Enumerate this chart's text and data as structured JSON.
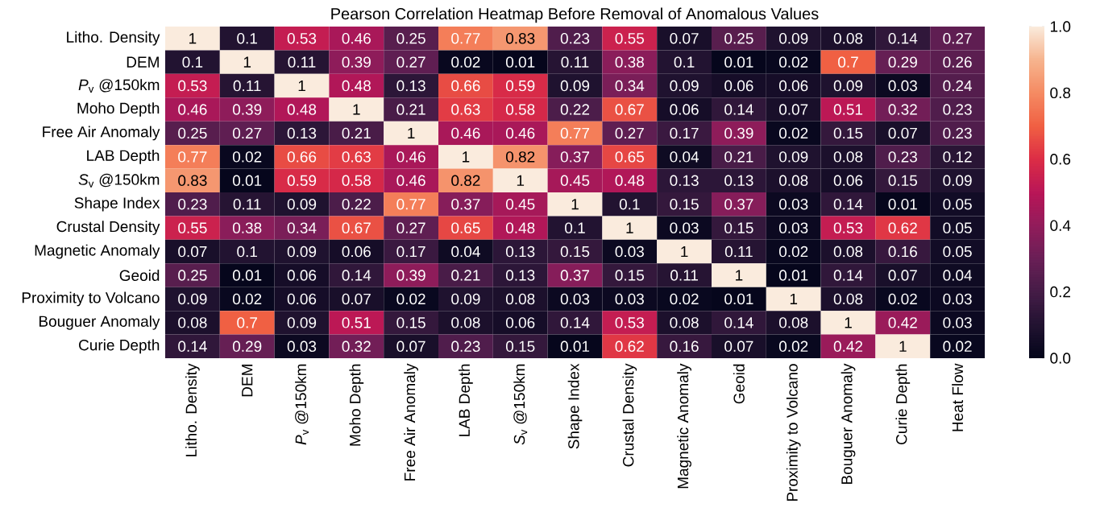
{
  "chart_data": {
    "type": "heatmap",
    "title": "Pearson Correlation Heatmap Before Removal of Anomalous Values",
    "categories": [
      "Litho. Density",
      "DEM",
      "*P*$_{v}$ @150km",
      "Moho Depth",
      "Free Air Anomaly",
      "LAB Depth",
      "*S*$_{v}$ @150km",
      "Shape Index",
      "Crustal Density",
      "Magnetic Anomaly",
      "Geoid",
      "Proximity to Volcano",
      "Bouguer Anomaly",
      "Curie Depth",
      "Heat Flow"
    ],
    "y_categories": [
      "Litho. Density",
      "DEM",
      "*P*$_{v}$ @150km",
      "Moho Depth",
      "Free Air Anomaly",
      "LAB Depth",
      "*S*$_{v}$ @150km",
      "Shape Index",
      "Crustal Density",
      "Magnetic Anomaly",
      "Geoid",
      "Proximity to Volcano",
      "Bouguer Anomaly",
      "Curie Depth"
    ],
    "cells": [
      [
        1,
        0.1,
        0.53,
        0.46,
        0.25,
        0.77,
        0.83,
        0.23,
        0.55,
        0.07,
        0.25,
        0.09,
        0.08,
        0.14,
        0.27
      ],
      [
        0.1,
        1,
        0.11,
        0.39,
        0.27,
        0.02,
        0.01,
        0.11,
        0.38,
        0.1,
        0.01,
        0.02,
        0.7,
        0.29,
        0.26
      ],
      [
        0.53,
        0.11,
        1,
        0.48,
        0.13,
        0.66,
        0.59,
        0.09,
        0.34,
        0.09,
        0.06,
        0.06,
        0.09,
        0.03,
        0.24
      ],
      [
        0.46,
        0.39,
        0.48,
        1,
        0.21,
        0.63,
        0.58,
        0.22,
        0.67,
        0.06,
        0.14,
        0.07,
        0.51,
        0.32,
        0.23
      ],
      [
        0.25,
        0.27,
        0.13,
        0.21,
        1,
        0.46,
        0.46,
        0.77,
        0.27,
        0.17,
        0.39,
        0.02,
        0.15,
        0.07,
        0.23
      ],
      [
        0.77,
        0.02,
        0.66,
        0.63,
        0.46,
        1,
        0.82,
        0.37,
        0.65,
        0.04,
        0.21,
        0.09,
        0.08,
        0.23,
        0.12
      ],
      [
        0.83,
        0.01,
        0.59,
        0.58,
        0.46,
        0.82,
        1,
        0.45,
        0.48,
        0.13,
        0.13,
        0.08,
        0.06,
        0.15,
        0.09
      ],
      [
        0.23,
        0.11,
        0.09,
        0.22,
        0.77,
        0.37,
        0.45,
        1,
        0.1,
        0.15,
        0.37,
        0.03,
        0.14,
        0.01,
        0.05
      ],
      [
        0.55,
        0.38,
        0.34,
        0.67,
        0.27,
        0.65,
        0.48,
        0.1,
        1,
        0.03,
        0.15,
        0.03,
        0.53,
        0.62,
        0.05
      ],
      [
        0.07,
        0.1,
        0.09,
        0.06,
        0.17,
        0.04,
        0.13,
        0.15,
        0.03,
        1,
        0.11,
        0.02,
        0.08,
        0.16,
        0.05
      ],
      [
        0.25,
        0.01,
        0.06,
        0.14,
        0.39,
        0.21,
        0.13,
        0.37,
        0.15,
        0.11,
        1,
        0.01,
        0.14,
        0.07,
        0.04
      ],
      [
        0.09,
        0.02,
        0.06,
        0.07,
        0.02,
        0.09,
        0.08,
        0.03,
        0.03,
        0.02,
        0.01,
        1,
        0.08,
        0.02,
        0.03
      ],
      [
        0.08,
        0.7,
        0.09,
        0.51,
        0.15,
        0.08,
        0.06,
        0.14,
        0.53,
        0.08,
        0.14,
        0.08,
        1,
        0.42,
        0.03
      ],
      [
        0.14,
        0.29,
        0.03,
        0.32,
        0.07,
        0.23,
        0.15,
        0.01,
        0.62,
        0.16,
        0.07,
        0.02,
        0.42,
        1,
        0.02
      ]
    ],
    "data_labels": true,
    "clim": [
      0,
      1
    ],
    "cticks": [
      {
        "value": 0,
        "label": "0.0"
      },
      0.2,
      0.4,
      0.6,
      0.8,
      {
        "value": 1,
        "label": "1.0"
      }
    ]
  }
}
